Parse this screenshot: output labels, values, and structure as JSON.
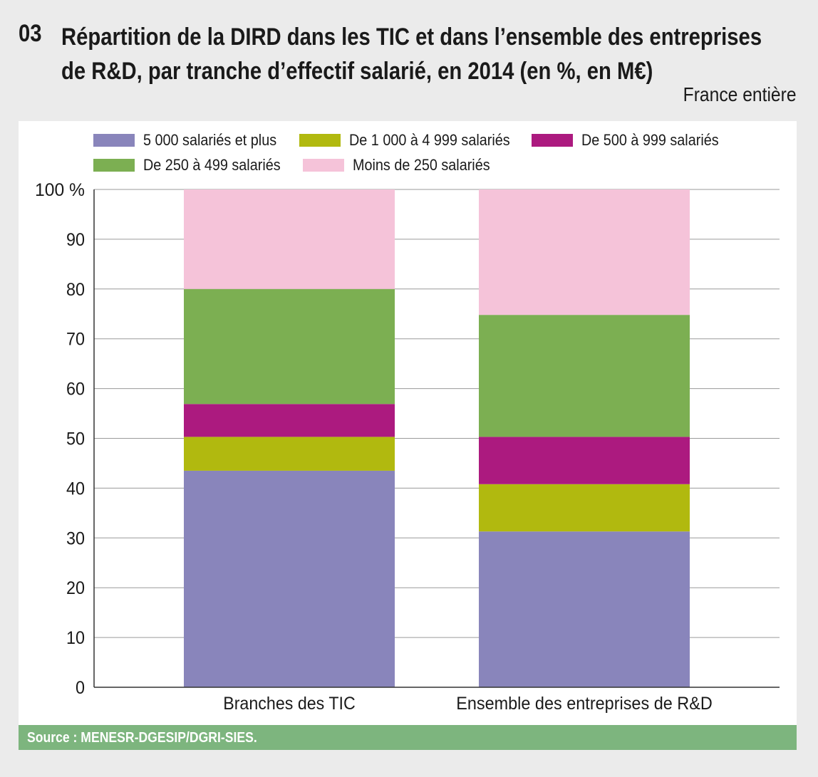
{
  "figure_number": "03",
  "title_line1": "Répartition de la DIRD dans les TIC et dans l’ensemble des entreprises",
  "title_line2": "de R&D, par tranche d’effectif salarié, en 2014 (en %, en M€)",
  "scope": "France entière",
  "source": "Source : MENESR-DGESIP/DGRI-SIES.",
  "chart_data": {
    "type": "bar",
    "stacked": true,
    "categories": [
      "Branches des TIC",
      "Ensemble des entreprises de R&D"
    ],
    "series": [
      {
        "name": "5 000 salariés et plus",
        "color": "#8985bb",
        "values": [
          43.5,
          31.3
        ]
      },
      {
        "name": "De 1 000 à 4 999 salariés",
        "color": "#b1b90f",
        "values": [
          6.8,
          9.5
        ]
      },
      {
        "name": "De 500 à 999 salariés",
        "color": "#ac1a7f",
        "values": [
          6.6,
          9.5
        ]
      },
      {
        "name": "De 250 à 499 salariés",
        "color": "#7caf52",
        "values": [
          23.1,
          24.5
        ]
      },
      {
        "name": "Moins de 250 salariés",
        "color": "#f5c3d9",
        "values": [
          20.0,
          25.2
        ]
      }
    ],
    "y_ticks": [
      "0",
      "10",
      "20",
      "30",
      "40",
      "50",
      "60",
      "70",
      "80",
      "90",
      "100 %"
    ],
    "ylim": [
      0,
      100
    ],
    "grid": true,
    "legend_position": "top"
  }
}
